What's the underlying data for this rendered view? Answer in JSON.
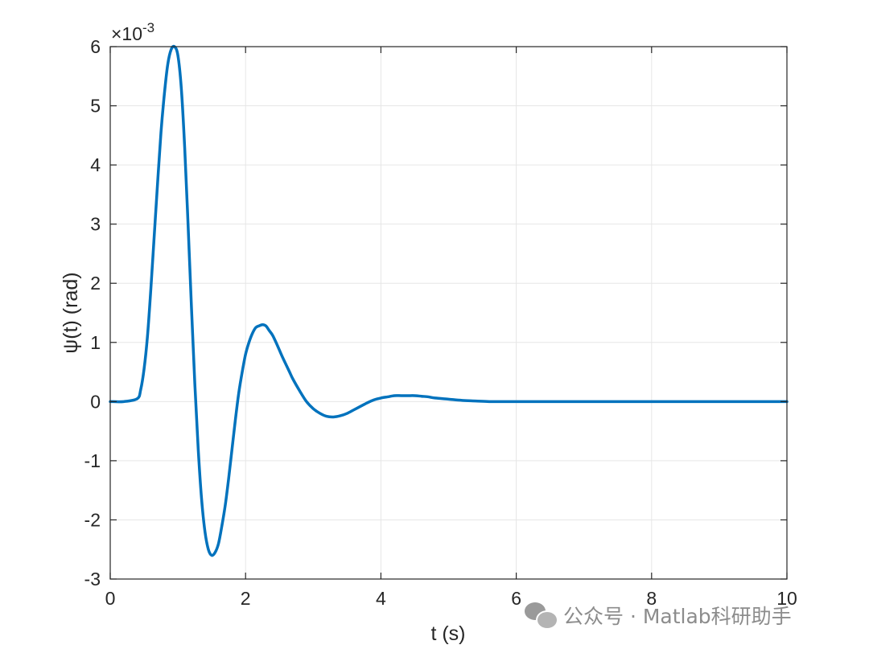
{
  "chart_data": {
    "type": "line",
    "title": "",
    "xlabel": "t (s)",
    "ylabel": "ψ(t) (rad)",
    "y_exponent_label": "×10",
    "y_exponent_power": "-3",
    "xlim": [
      0,
      10
    ],
    "ylim": [
      -3,
      6
    ],
    "y_scale_factor": 0.001,
    "grid": true,
    "xticks": [
      0,
      2,
      4,
      6,
      8,
      10
    ],
    "xtick_labels": [
      "0",
      "2",
      "4",
      "6",
      "8",
      "10"
    ],
    "yticks": [
      -3,
      -2,
      -1,
      0,
      1,
      2,
      3,
      4,
      5,
      6
    ],
    "ytick_labels": [
      "-3",
      "-2",
      "-1",
      "0",
      "1",
      "2",
      "3",
      "4",
      "5",
      "6"
    ],
    "line_color": "#0072BD",
    "series": [
      {
        "x": [
          0,
          0.2,
          0.4,
          0.45,
          0.5,
          0.55,
          0.6,
          0.65,
          0.7,
          0.75,
          0.8,
          0.85,
          0.9,
          0.95,
          1.0,
          1.05,
          1.1,
          1.15,
          1.2,
          1.25,
          1.3,
          1.35,
          1.4,
          1.45,
          1.5,
          1.55,
          1.6,
          1.65,
          1.7,
          1.75,
          1.8,
          1.85,
          1.9,
          1.95,
          2.0,
          2.05,
          2.1,
          2.15,
          2.2,
          2.25,
          2.3,
          2.35,
          2.4,
          2.45,
          2.5,
          2.55,
          2.6,
          2.65,
          2.7,
          2.8,
          2.9,
          3.0,
          3.1,
          3.2,
          3.3,
          3.4,
          3.5,
          3.6,
          3.7,
          3.8,
          3.9,
          4.0,
          4.1,
          4.2,
          4.3,
          4.4,
          4.5,
          4.6,
          4.7,
          4.8,
          5.0,
          5.2,
          5.4,
          5.6,
          5.8,
          6.0,
          6.5,
          7.0,
          8.0,
          9.0,
          10.0
        ],
        "values": [
          0,
          0,
          0.05,
          0.2,
          0.55,
          1.1,
          1.9,
          2.8,
          3.7,
          4.55,
          5.2,
          5.7,
          5.95,
          6.0,
          5.85,
          5.3,
          4.3,
          3.0,
          1.6,
          0.3,
          -0.8,
          -1.65,
          -2.2,
          -2.5,
          -2.6,
          -2.55,
          -2.4,
          -2.1,
          -1.75,
          -1.3,
          -0.8,
          -0.3,
          0.15,
          0.5,
          0.8,
          1.0,
          1.15,
          1.25,
          1.28,
          1.3,
          1.28,
          1.2,
          1.12,
          1.0,
          0.87,
          0.74,
          0.62,
          0.5,
          0.38,
          0.18,
          0.0,
          -0.12,
          -0.2,
          -0.25,
          -0.26,
          -0.24,
          -0.2,
          -0.14,
          -0.08,
          -0.02,
          0.03,
          0.06,
          0.08,
          0.1,
          0.1,
          0.1,
          0.1,
          0.09,
          0.08,
          0.06,
          0.04,
          0.02,
          0.01,
          0.0,
          0.0,
          0.0,
          0.0,
          0.0,
          0.0,
          0.0,
          0.0
        ]
      }
    ]
  },
  "watermark": {
    "text": "公众号 · Matlab科研助手",
    "icon": "wechat-icon"
  }
}
